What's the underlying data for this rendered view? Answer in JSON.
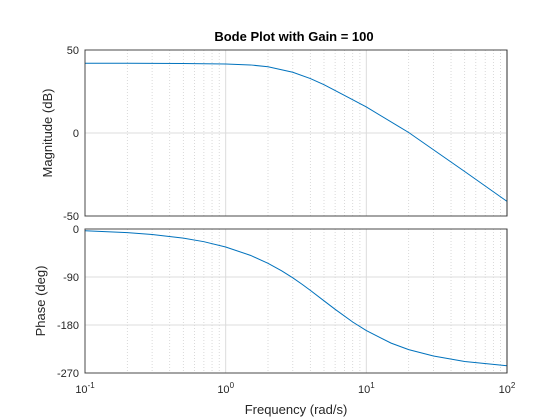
{
  "chart_data": {
    "type": "line",
    "title": "Bode Plot with Gain = 100",
    "xlabel": "Frequency  (rad/s)",
    "x_scale": "log",
    "xlim": [
      0.1,
      100
    ],
    "x_ticks": [
      {
        "base": "10",
        "exp": "-1"
      },
      {
        "base": "10",
        "exp": "0"
      },
      {
        "base": "10",
        "exp": "1"
      },
      {
        "base": "10",
        "exp": "2"
      }
    ],
    "grid": true,
    "panels": [
      {
        "name": "magnitude",
        "ylabel": "Magnitude (dB)",
        "ylim": [
          -50,
          50
        ],
        "y_ticks": [
          "50",
          "0",
          "-50"
        ],
        "x": [
          0.1,
          0.2,
          0.5,
          1,
          1.5,
          2,
          3,
          4,
          5,
          7,
          10,
          20,
          50,
          100
        ],
        "y": [
          42,
          42,
          41.9,
          41.6,
          41,
          39.9,
          36.6,
          32.8,
          29.1,
          22.6,
          15.7,
          0.3,
          -23.2,
          -41.2
        ]
      },
      {
        "name": "phase",
        "ylabel": "Phase (deg)",
        "ylim": [
          -270,
          0
        ],
        "y_ticks": [
          "0",
          "-90",
          "-180",
          "-270"
        ],
        "x": [
          0.1,
          0.2,
          0.3,
          0.5,
          0.7,
          1,
          1.5,
          2,
          2.5,
          3,
          3.5,
          4,
          5,
          6,
          8,
          10,
          15,
          20,
          30,
          50,
          100
        ],
        "y": [
          -3.4,
          -6.9,
          -10.3,
          -17.1,
          -23.8,
          -33.7,
          -49.4,
          -64.3,
          -78.4,
          -91.6,
          -103.8,
          -115.1,
          -134.6,
          -150.6,
          -174.4,
          -190.5,
          -214,
          -226.1,
          -238.1,
          -248.4,
          -256.5
        ]
      }
    ],
    "colors": {
      "series": "#0072BD",
      "axes": "#262626",
      "grid": "#dcdcdc"
    }
  }
}
